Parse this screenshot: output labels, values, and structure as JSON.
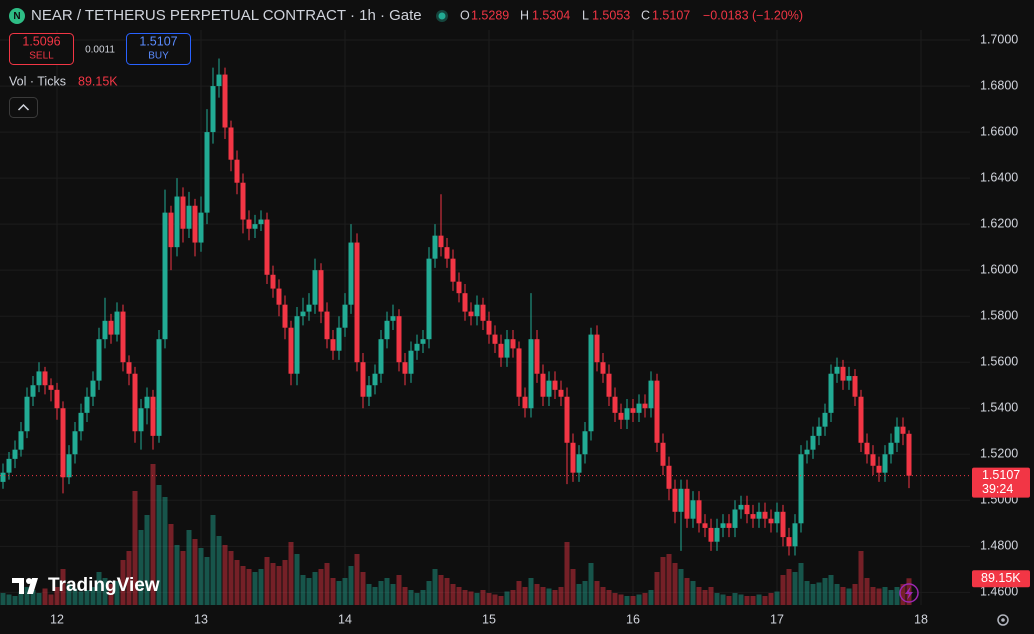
{
  "chart_data": {
    "type": "candlestick",
    "symbol": "NEAR / TETHERUS PERPETUAL CONTRACT · 1h · Gate",
    "symbol_icon": "N",
    "legend": {
      "o_label": "O",
      "open": 1.5289,
      "h_label": "H",
      "high": 1.5304,
      "l_label": "L",
      "low": 1.5053,
      "c_label": "C",
      "close": 1.5107,
      "change": "−0.0183 (−1.20%)"
    },
    "sell": {
      "price": 1.5096,
      "label": "SELL"
    },
    "spread": 0.0011,
    "buy": {
      "price": 1.5107,
      "label": "BUY"
    },
    "volume_legend": {
      "name": "Vol · Ticks",
      "value_label": "89.15K"
    },
    "logo": "TradingView",
    "last_price": {
      "value": 1.5107,
      "countdown": "39:24"
    },
    "volume_tag": "89.15K",
    "up_color": "#22ab94",
    "down_color": "#f23645",
    "ylim": [
      1.4545,
      1.7174
    ],
    "yticks": [
      {
        "value": 1.46,
        "label": "1.4600"
      },
      {
        "value": 1.48,
        "label": "1.4800"
      },
      {
        "value": 1.5,
        "label": "1.5000"
      },
      {
        "value": 1.52,
        "label": "1.5200"
      },
      {
        "value": 1.54,
        "label": "1.5400"
      },
      {
        "value": 1.56,
        "label": "1.5600"
      },
      {
        "value": 1.58,
        "label": "1.5800"
      },
      {
        "value": 1.6,
        "label": "1.6000"
      },
      {
        "value": 1.62,
        "label": "1.6200"
      },
      {
        "value": 1.64,
        "label": "1.6400"
      },
      {
        "value": 1.66,
        "label": "1.6600"
      },
      {
        "value": 1.68,
        "label": "1.6800"
      },
      {
        "value": {
          "value": 1.7,
          "label": "1.7000"
        }
      }
    ],
    "x_labels": [
      "12",
      "13",
      "14",
      "15",
      "16",
      "17",
      "18"
    ],
    "volume_lim": [
      0,
      550000
    ],
    "open": [
      1.508,
      1.512,
      1.518,
      1.522,
      1.53,
      1.545,
      1.55,
      1.556,
      1.55,
      1.548,
      1.54,
      1.51,
      1.52,
      1.53,
      1.538,
      1.545,
      1.552,
      1.57,
      1.578,
      1.572,
      1.582,
      1.56,
      1.555,
      1.53,
      1.54,
      1.545,
      1.528,
      1.57,
      1.625,
      1.61,
      1.632,
      1.618,
      1.628,
      1.612,
      1.625,
      1.66,
      1.68,
      1.685,
      1.662,
      1.648,
      1.638,
      1.622,
      1.618,
      1.62,
      1.622,
      1.598,
      1.592,
      1.585,
      1.575,
      1.555,
      1.58,
      1.582,
      1.585,
      1.6,
      1.582,
      1.57,
      1.565,
      1.575,
      1.585,
      1.612,
      1.56,
      1.545,
      1.55,
      1.555,
      1.57,
      1.578,
      1.58,
      1.56,
      1.555,
      1.565,
      1.568,
      1.57,
      1.605,
      1.615,
      1.61,
      1.605,
      1.595,
      1.59,
      1.582,
      1.58,
      1.585,
      1.578,
      1.572,
      1.568,
      1.562,
      1.57,
      1.566,
      1.545,
      1.54,
      1.57,
      1.555,
      1.545,
      1.552,
      1.548,
      1.545,
      1.525,
      1.512,
      1.52,
      1.53,
      1.572,
      1.56,
      1.555,
      1.545,
      1.538,
      1.535,
      1.54,
      1.538,
      1.542,
      1.54,
      1.552,
      1.525,
      1.515,
      1.505,
      1.495,
      1.505,
      1.492,
      1.5,
      1.49,
      1.488,
      1.482,
      1.488,
      1.49,
      1.488,
      1.496,
      1.498,
      1.494,
      1.492,
      1.495,
      1.492,
      1.49,
      1.495,
      1.484,
      1.48,
      1.49,
      1.52,
      1.522,
      1.528,
      1.532,
      1.538,
      1.555,
      1.558,
      1.552,
      1.554,
      1.545,
      1.525,
      1.52,
      1.515,
      1.512,
      1.52,
      1.525,
      1.532,
      1.5289
    ],
    "high": [
      1.516,
      1.521,
      1.526,
      1.534,
      1.549,
      1.554,
      1.56,
      1.558,
      1.553,
      1.551,
      1.543,
      1.524,
      1.534,
      1.542,
      1.549,
      1.556,
      1.575,
      1.588,
      1.581,
      1.586,
      1.585,
      1.563,
      1.558,
      1.544,
      1.549,
      1.548,
      1.574,
      1.635,
      1.628,
      1.64,
      1.636,
      1.634,
      1.631,
      1.632,
      1.67,
      1.688,
      1.692,
      1.688,
      1.665,
      1.652,
      1.642,
      1.626,
      1.624,
      1.626,
      1.625,
      1.602,
      1.596,
      1.589,
      1.578,
      1.584,
      1.588,
      1.59,
      1.605,
      1.603,
      1.586,
      1.574,
      1.58,
      1.59,
      1.62,
      1.616,
      1.564,
      1.554,
      1.559,
      1.574,
      1.582,
      1.585,
      1.583,
      1.564,
      1.569,
      1.572,
      1.574,
      1.61,
      1.62,
      1.633,
      1.614,
      1.609,
      1.599,
      1.594,
      1.586,
      1.589,
      1.588,
      1.582,
      1.576,
      1.572,
      1.574,
      1.574,
      1.569,
      1.549,
      1.59,
      1.574,
      1.559,
      1.556,
      1.556,
      1.552,
      1.549,
      1.529,
      1.524,
      1.534,
      1.575,
      1.576,
      1.564,
      1.559,
      1.549,
      1.542,
      1.544,
      1.544,
      1.546,
      1.546,
      1.556,
      1.555,
      1.529,
      1.519,
      1.509,
      1.509,
      1.509,
      1.504,
      1.504,
      1.494,
      1.492,
      1.492,
      1.494,
      1.494,
      1.5,
      1.502,
      1.502,
      1.498,
      1.499,
      1.499,
      1.496,
      1.499,
      1.498,
      1.488,
      1.494,
      1.524,
      1.526,
      1.532,
      1.536,
      1.542,
      1.559,
      1.562,
      1.561,
      1.558,
      1.557,
      1.548,
      1.529,
      1.524,
      1.519,
      1.524,
      1.529,
      1.536,
      1.536,
      1.5304
    ],
    "low": [
      1.505,
      1.509,
      1.514,
      1.519,
      1.527,
      1.541,
      1.547,
      1.546,
      1.543,
      1.535,
      1.503,
      1.507,
      1.516,
      1.526,
      1.534,
      1.541,
      1.548,
      1.566,
      1.568,
      1.569,
      1.556,
      1.55,
      1.525,
      1.522,
      1.533,
      1.522,
      1.525,
      1.566,
      1.6,
      1.606,
      1.612,
      1.614,
      1.606,
      1.608,
      1.62,
      1.655,
      1.675,
      1.657,
      1.643,
      1.633,
      1.616,
      1.613,
      1.614,
      1.617,
      1.594,
      1.588,
      1.58,
      1.57,
      1.55,
      1.55,
      1.576,
      1.578,
      1.581,
      1.577,
      1.566,
      1.561,
      1.561,
      1.571,
      1.581,
      1.556,
      1.54,
      1.541,
      1.546,
      1.551,
      1.566,
      1.574,
      1.556,
      1.55,
      1.551,
      1.561,
      1.564,
      1.566,
      1.601,
      1.606,
      1.601,
      1.591,
      1.586,
      1.578,
      1.576,
      1.576,
      1.574,
      1.568,
      1.564,
      1.558,
      1.558,
      1.562,
      1.541,
      1.536,
      1.536,
      1.551,
      1.541,
      1.541,
      1.544,
      1.541,
      1.507,
      1.508,
      1.508,
      1.516,
      1.526,
      1.556,
      1.551,
      1.541,
      1.534,
      1.531,
      1.531,
      1.534,
      1.534,
      1.536,
      1.536,
      1.521,
      1.511,
      1.5,
      1.49,
      1.478,
      1.488,
      1.488,
      1.486,
      1.484,
      1.478,
      1.478,
      1.484,
      1.484,
      1.484,
      1.492,
      1.49,
      1.488,
      1.488,
      1.488,
      1.486,
      1.486,
      1.48,
      1.476,
      1.476,
      1.486,
      1.516,
      1.518,
      1.524,
      1.528,
      1.534,
      1.551,
      1.548,
      1.548,
      1.541,
      1.521,
      1.516,
      1.511,
      1.508,
      1.508,
      1.516,
      1.521,
      1.524,
      1.5053
    ],
    "close": [
      1.512,
      1.518,
      1.522,
      1.53,
      1.545,
      1.55,
      1.556,
      1.55,
      1.548,
      1.54,
      1.51,
      1.52,
      1.53,
      1.538,
      1.545,
      1.552,
      1.57,
      1.578,
      1.572,
      1.582,
      1.56,
      1.555,
      1.53,
      1.54,
      1.545,
      1.528,
      1.57,
      1.625,
      1.61,
      1.632,
      1.618,
      1.628,
      1.612,
      1.625,
      1.66,
      1.68,
      1.685,
      1.662,
      1.648,
      1.638,
      1.622,
      1.618,
      1.62,
      1.622,
      1.598,
      1.592,
      1.585,
      1.575,
      1.555,
      1.58,
      1.582,
      1.585,
      1.6,
      1.582,
      1.57,
      1.565,
      1.575,
      1.585,
      1.612,
      1.56,
      1.545,
      1.55,
      1.555,
      1.57,
      1.578,
      1.58,
      1.56,
      1.555,
      1.565,
      1.568,
      1.57,
      1.605,
      1.615,
      1.61,
      1.605,
      1.595,
      1.59,
      1.582,
      1.58,
      1.585,
      1.578,
      1.572,
      1.568,
      1.562,
      1.57,
      1.566,
      1.545,
      1.54,
      1.57,
      1.555,
      1.545,
      1.552,
      1.548,
      1.545,
      1.525,
      1.512,
      1.52,
      1.53,
      1.572,
      1.56,
      1.555,
      1.545,
      1.538,
      1.535,
      1.54,
      1.538,
      1.542,
      1.54,
      1.552,
      1.525,
      1.515,
      1.505,
      1.495,
      1.505,
      1.492,
      1.5,
      1.49,
      1.488,
      1.482,
      1.488,
      1.49,
      1.488,
      1.496,
      1.498,
      1.494,
      1.492,
      1.495,
      1.492,
      1.49,
      1.495,
      1.484,
      1.48,
      1.49,
      1.52,
      1.522,
      1.528,
      1.532,
      1.538,
      1.555,
      1.558,
      1.552,
      1.554,
      1.545,
      1.525,
      1.52,
      1.515,
      1.512,
      1.52,
      1.525,
      1.532,
      1.5289,
      1.5107
    ],
    "volume": [
      40000,
      35000,
      30000,
      45000,
      60000,
      50000,
      40000,
      55000,
      35000,
      60000,
      120000,
      70000,
      55000,
      45000,
      50000,
      60000,
      110000,
      90000,
      70000,
      80000,
      150000,
      180000,
      380000,
      250000,
      300000,
      470000,
      400000,
      360000,
      270000,
      200000,
      180000,
      250000,
      220000,
      190000,
      160000,
      300000,
      230000,
      200000,
      180000,
      150000,
      130000,
      120000,
      110000,
      120000,
      160000,
      140000,
      130000,
      150000,
      210000,
      170000,
      100000,
      90000,
      110000,
      120000,
      140000,
      90000,
      80000,
      90000,
      130000,
      170000,
      110000,
      70000,
      60000,
      80000,
      90000,
      70000,
      100000,
      60000,
      50000,
      40000,
      50000,
      80000,
      120000,
      100000,
      90000,
      70000,
      60000,
      50000,
      45000,
      40000,
      50000,
      40000,
      35000,
      30000,
      45000,
      50000,
      80000,
      60000,
      90000,
      70000,
      60000,
      55000,
      50000,
      60000,
      210000,
      120000,
      70000,
      80000,
      140000,
      80000,
      60000,
      50000,
      40000,
      35000,
      30000,
      30000,
      35000,
      40000,
      50000,
      110000,
      160000,
      170000,
      140000,
      120000,
      90000,
      80000,
      60000,
      50000,
      60000,
      40000,
      35000,
      30000,
      40000,
      35000,
      30000,
      30000,
      35000,
      30000,
      40000,
      45000,
      100000,
      120000,
      110000,
      140000,
      80000,
      70000,
      75000,
      90000,
      100000,
      70000,
      60000,
      55000,
      70000,
      180000,
      90000,
      60000,
      55000,
      60000,
      50000,
      60000,
      70000,
      89150
    ]
  }
}
